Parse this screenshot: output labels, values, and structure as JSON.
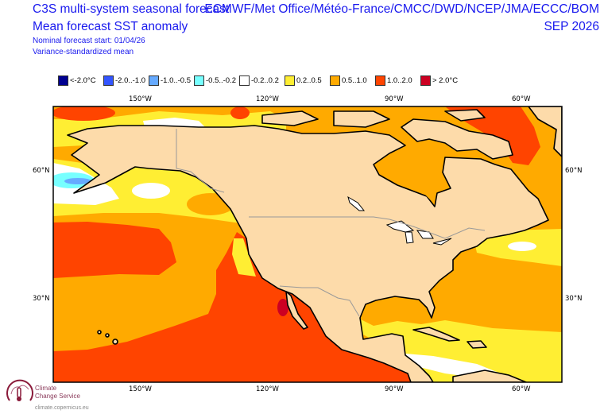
{
  "header": {
    "title": "C3S multi-system seasonal forecast",
    "subtitle": "Mean forecast SST anomaly",
    "forecast_start": "Nominal forecast start: 01/04/26",
    "method": "Variance-standardized mean",
    "centres": "ECMWF/Met Office/Météo-France/CMCC/DWD/NCEP/JMA/ECCC/BOM",
    "period": "SEP 2026"
  },
  "legend": [
    {
      "label": "<-2.0°C",
      "color": "#000090"
    },
    {
      "label": "-2.0..-1.0",
      "color": "#3355ff"
    },
    {
      "label": "-1.0..-0.5",
      "color": "#66aaff"
    },
    {
      "label": "-0.5..-0.2",
      "color": "#77ffff"
    },
    {
      "label": "-0.2..0.2",
      "color": "#ffffff"
    },
    {
      "label": "0.2..0.5",
      "color": "#ffee33"
    },
    {
      "label": "0.5..1.0",
      "color": "#ffaa00"
    },
    {
      "label": "1.0..2.0",
      "color": "#ff4400"
    },
    {
      "label": "> 2.0°C",
      "color": "#cc0022"
    }
  ],
  "axes": {
    "lon_labels": [
      "150°W",
      "120°W",
      "90°W",
      "60°W"
    ],
    "lat_labels": [
      "60°N",
      "30°N"
    ]
  },
  "logo": {
    "line1": "Climate",
    "line2": "Change Service",
    "url": "climate.copernicus.eu"
  }
}
